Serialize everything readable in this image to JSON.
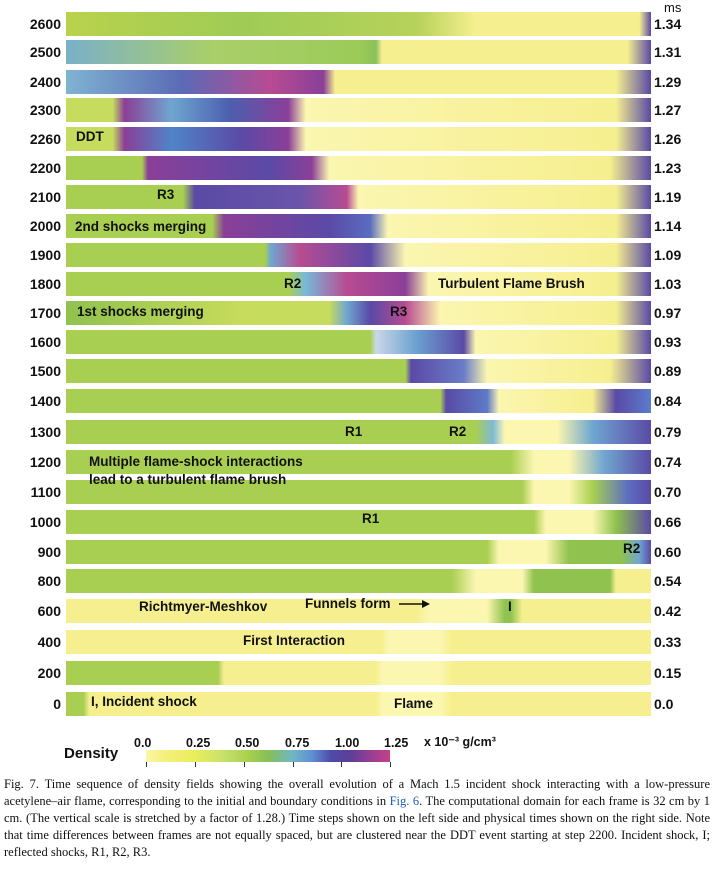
{
  "figure": {
    "time_unit": "ms",
    "frames": [
      {
        "step": "2600",
        "time": "1.34"
      },
      {
        "step": "2500",
        "time": "1.31"
      },
      {
        "step": "2400",
        "time": "1.29"
      },
      {
        "step": "2300",
        "time": "1.27"
      },
      {
        "step": "2260",
        "time": "1.26"
      },
      {
        "step": "2200",
        "time": "1.23"
      },
      {
        "step": "2100",
        "time": "1.19"
      },
      {
        "step": "2000",
        "time": "1.14"
      },
      {
        "step": "1900",
        "time": "1.09"
      },
      {
        "step": "1800",
        "time": "1.03"
      },
      {
        "step": "1700",
        "time": "0.97"
      },
      {
        "step": "1600",
        "time": "0.93"
      },
      {
        "step": "1500",
        "time": "0.89"
      },
      {
        "step": "1400",
        "time": "0.84"
      },
      {
        "step": "1300",
        "time": "0.79"
      },
      {
        "step": "1200",
        "time": "0.74"
      },
      {
        "step": "1100",
        "time": "0.70"
      },
      {
        "step": "1000",
        "time": "0.66"
      },
      {
        "step": "900",
        "time": "0.60"
      },
      {
        "step": "800",
        "time": "0.54"
      },
      {
        "step": "600",
        "time": "0.42"
      },
      {
        "step": "400",
        "time": "0.33"
      },
      {
        "step": "200",
        "time": "0.15"
      },
      {
        "step": "0",
        "time": "0.0"
      }
    ],
    "annotations": {
      "ddt": "DDT",
      "r3_2100": "R3",
      "second_shocks": "2nd shocks merging",
      "r2_1800": "R2",
      "turbulent_flame_brush": "Turbulent Flame Brush",
      "first_shocks": "1st shocks merging",
      "r3_1700": "R3",
      "r1_1300": "R1",
      "r2_1300": "R2",
      "multiple_line1": "Multiple flame-shock interactions",
      "multiple_line2": "lead to a turbulent flame brush",
      "r1_1000": "R1",
      "r2_900": "R2",
      "richtmyer": "Richtmyer-Meshkov",
      "funnels": "Funnels form",
      "incident_600": "I",
      "first_interaction": "First Interaction",
      "incident_0": "I, Incident shock",
      "flame": "Flame"
    },
    "colorbar": {
      "label": "Density",
      "ticks": [
        "0.0",
        "0.25",
        "0.50",
        "0.75",
        "1.00",
        "1.25"
      ],
      "unit": "x 10⁻³ g/cm³",
      "colors": [
        "#fdf6a6",
        "#e9ee5c",
        "#a7d14c",
        "#6fb7c5",
        "#4e4aa8",
        "#c6408c"
      ]
    }
  },
  "caption": {
    "text_a": "Fig. 7. Time sequence of density fields showing the overall evolution of a Mach 1.5 incident shock interacting with a low-pressure acetylene–air flame, corresponding to the initial and boundary conditions in ",
    "link": "Fig. 6",
    "text_b": ". The computational domain for each frame is 32 cm by 1 cm. (The vertical scale is stretched by a factor of 1.28.) Time steps shown on the left side and physical times shown on the right side. Note that time differences between frames are not equally spaced, but are clustered near the DDT event starting at step 2200. Incident shock, I; reflected shocks, R1, R2, R3."
  }
}
